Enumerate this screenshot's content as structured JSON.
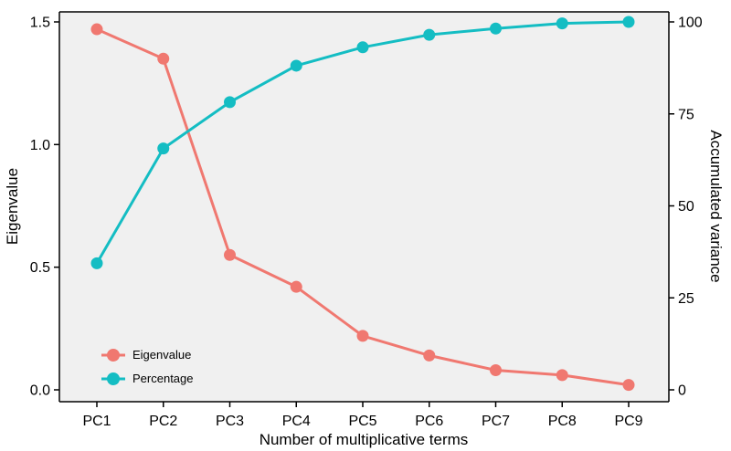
{
  "chart_data": {
    "type": "line",
    "categories": [
      "PC1",
      "PC2",
      "PC3",
      "PC4",
      "PC5",
      "PC6",
      "PC7",
      "PC8",
      "PC9"
    ],
    "xlabel": "Number of multiplicative terms",
    "ylabel_left": "Eigenvalue",
    "ylabel_right": "Accumulated variance",
    "ylim_left": [
      0,
      1.5
    ],
    "yticks_left": [
      0.0,
      0.5,
      1.0,
      1.5
    ],
    "yticklabels_left": [
      "0.0",
      "0.5",
      "1.0",
      "1.5"
    ],
    "ylim_right": [
      0,
      100
    ],
    "yticks_right": [
      0,
      25,
      50,
      75,
      100
    ],
    "yticklabels_right": [
      "0",
      "25",
      "50",
      "75",
      "100"
    ],
    "grid": false,
    "legend_position": "bottom-left",
    "series": [
      {
        "name": "Eigenvalue",
        "axis": "left",
        "color": "#F07870",
        "values": [
          1.47,
          1.35,
          0.55,
          0.42,
          0.22,
          0.14,
          0.08,
          0.06,
          0.02
        ]
      },
      {
        "name": "Percentage",
        "axis": "right",
        "color": "#14BDC3",
        "values": [
          34.4,
          65.6,
          78.2,
          88.1,
          93.1,
          96.5,
          98.2,
          99.6,
          100.0
        ]
      }
    ]
  },
  "colors": {
    "panel_background": "#F0F0F0",
    "axis": "#000000"
  }
}
